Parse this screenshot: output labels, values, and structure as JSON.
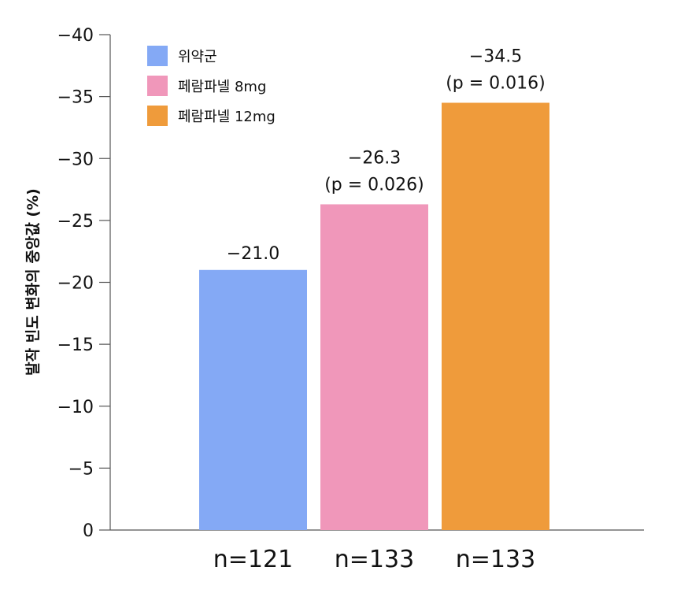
{
  "chart_data": {
    "type": "bar",
    "title": "",
    "ylabel": "발작 빈도 변화의 중앙값 (%)",
    "xlabel": "",
    "ylim": [
      0,
      -40
    ],
    "yticks": [
      0,
      -5,
      -10,
      -15,
      -20,
      -25,
      -30,
      -35,
      -40
    ],
    "ytick_labels": [
      "0",
      "−5",
      "−10",
      "−15",
      "−20",
      "−25",
      "−30",
      "−35",
      "−40"
    ],
    "grid": false,
    "legend_position": "top-left",
    "categories": [
      "n=121",
      "n=133",
      "n=133"
    ],
    "series": [
      {
        "name": "위약군",
        "value": -21.0,
        "label": "−21.0",
        "p_label": "",
        "color": "#84a9f5"
      },
      {
        "name": "페람파넬 8mg",
        "value": -26.3,
        "label": "−26.3",
        "p_label": "(p = 0.026)",
        "color": "#f097ba"
      },
      {
        "name": "페람파넬 12mg",
        "value": -34.5,
        "label": "−34.5",
        "p_label": "(p = 0.016)",
        "color": "#ef9b3b"
      }
    ]
  }
}
